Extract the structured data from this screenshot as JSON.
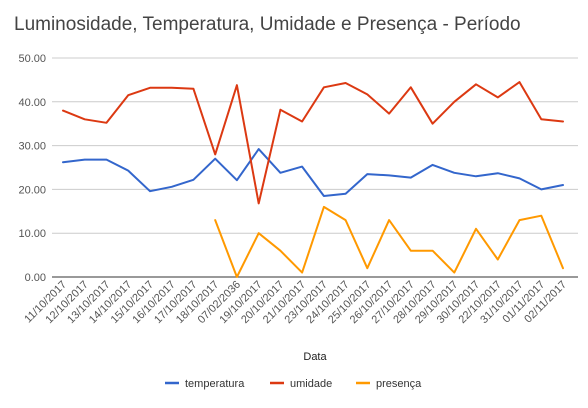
{
  "chart_data": {
    "type": "line",
    "title": "Luminosidade, Temperatura, Umidade e Presença - Período",
    "xlabel": "Data",
    "ylabel": "",
    "ylim": [
      0,
      50
    ],
    "yticks": [
      "0.00",
      "10.00",
      "20.00",
      "30.00",
      "40.00",
      "50.00"
    ],
    "grid": true,
    "legend_position": "bottom",
    "categories": [
      "11/10/2017",
      "12/10/2017",
      "13/10/2017",
      "14/10/2017",
      "15/10/2017",
      "16/10/2017",
      "17/10/2017",
      "18/10/2017",
      "07/02/2036",
      "19/10/2017",
      "20/10/2017",
      "21/10/2017",
      "23/10/2017",
      "24/10/2017",
      "25/10/2017",
      "26/10/2017",
      "27/10/2017",
      "28/10/2017",
      "29/10/2017",
      "30/10/2017",
      "22/10/2017",
      "31/10/2017",
      "01/11/2017",
      "02/11/2017"
    ],
    "series": [
      {
        "name": "temperatura",
        "color": "#3366cc",
        "values": [
          26.2,
          26.8,
          26.8,
          24.3,
          19.6,
          20.6,
          22.2,
          27.0,
          22.1,
          29.2,
          23.8,
          25.2,
          18.5,
          19.0,
          23.5,
          23.2,
          22.7,
          25.6,
          23.8,
          23.0,
          23.7,
          22.5,
          20.0,
          21.0
        ]
      },
      {
        "name": "umidade",
        "color": "#dc3912",
        "values": [
          38.0,
          36.0,
          35.2,
          41.5,
          43.2,
          43.2,
          43.0,
          28.0,
          43.8,
          16.8,
          38.2,
          35.5,
          43.3,
          44.3,
          41.7,
          37.3,
          43.3,
          35.0,
          40.0,
          44.0,
          41.0,
          44.5,
          36.0,
          35.5
        ]
      },
      {
        "name": "presença",
        "color": "#ff9900",
        "values": [
          null,
          null,
          null,
          null,
          null,
          null,
          null,
          13.0,
          0.0,
          10.0,
          6.0,
          1.0,
          16.0,
          13.0,
          2.0,
          13.0,
          6.0,
          6.0,
          1.0,
          11.0,
          4.0,
          13.0,
          14.0,
          2.0
        ]
      }
    ]
  }
}
